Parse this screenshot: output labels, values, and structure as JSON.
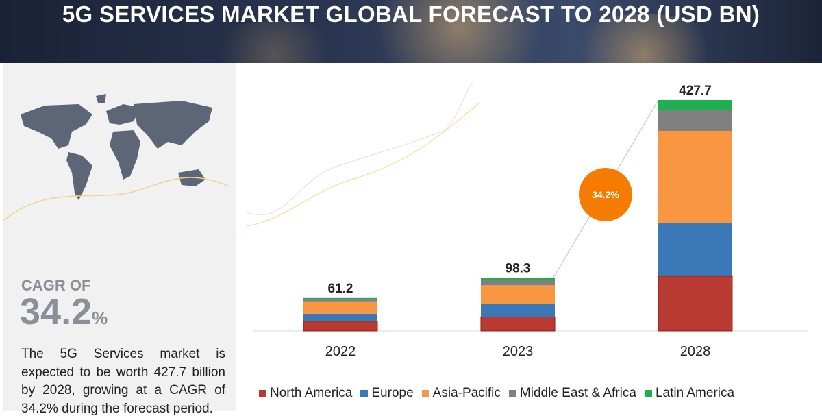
{
  "header": {
    "title": "5G SERVICES MARKET GLOBAL FORECAST TO 2028 (USD BN)"
  },
  "sidebar": {
    "cagr_label": "CAGR OF",
    "cagr_value": "34.2",
    "cagr_unit": "%",
    "description": "The 5G Services market is expected to be worth 427.7 billion by 2028, growing at a CAGR of 34.2% during the forecast period."
  },
  "chart_data": {
    "type": "bar",
    "stacked": true,
    "categories": [
      "2022",
      "2023",
      "2028"
    ],
    "totals": [
      "61.2",
      "98.3",
      "427.7"
    ],
    "series": [
      {
        "name": "North America",
        "color": "#b83a30",
        "values": [
          18.0,
          26.4,
          101.6
        ]
      },
      {
        "name": "Europe",
        "color": "#3a78b8",
        "values": [
          14.0,
          23.7,
          97.7
        ]
      },
      {
        "name": "Asia-Pacific",
        "color": "#f99642",
        "values": [
          22.8,
          34.6,
          171.3
        ]
      },
      {
        "name": "Middle East & Africa",
        "color": "#808080",
        "values": [
          3.5,
          9.8,
          39.3
        ]
      },
      {
        "name": "Latin America",
        "color": "#1eb050",
        "values": [
          2.9,
          3.8,
          17.8
        ]
      }
    ],
    "annotation": {
      "text": "34.2%",
      "color": "#f57c00"
    },
    "legend_position": "bottom",
    "grid": false,
    "ylim": [
      0,
      427.7
    ]
  }
}
